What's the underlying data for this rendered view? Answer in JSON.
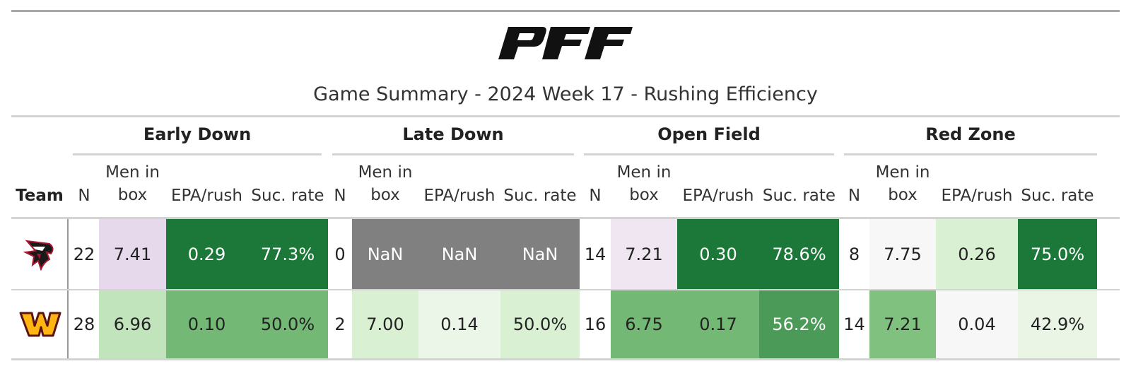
{
  "title": "Game Summary - 2024 Week 17 - Rushing Efficiency",
  "logo_text": "PFF",
  "chart_data": {
    "type": "table",
    "row_header": "Team",
    "groups": [
      "Early Down",
      "Late Down",
      "Open Field",
      "Red Zone"
    ],
    "columns": [
      "N",
      "Men in box",
      "EPA/rush",
      "Suc. rate"
    ],
    "rows": [
      {
        "team": "atlanta-falcons",
        "cells": [
          {
            "text": "22",
            "bg": "#ffffff",
            "color": "#222222"
          },
          {
            "text": "7.41",
            "bg": "#e7d9ec",
            "color": "#222222"
          },
          {
            "text": "0.29",
            "bg": "#1b7838",
            "color": "#ffffff"
          },
          {
            "text": "77.3%",
            "bg": "#1b7838",
            "color": "#ffffff"
          },
          {
            "text": "0",
            "bg": "#ffffff",
            "color": "#222222"
          },
          {
            "text": "NaN",
            "bg": "#808080",
            "color": "#ffffff"
          },
          {
            "text": "NaN",
            "bg": "#808080",
            "color": "#ffffff"
          },
          {
            "text": "NaN",
            "bg": "#808080",
            "color": "#ffffff"
          },
          {
            "text": "14",
            "bg": "#ffffff",
            "color": "#222222"
          },
          {
            "text": "7.21",
            "bg": "#efe6f2",
            "color": "#222222"
          },
          {
            "text": "0.30",
            "bg": "#1b7838",
            "color": "#ffffff"
          },
          {
            "text": "78.6%",
            "bg": "#1b7838",
            "color": "#ffffff"
          },
          {
            "text": "8",
            "bg": "#ffffff",
            "color": "#222222"
          },
          {
            "text": "7.75",
            "bg": "#f7f7f7",
            "color": "#222222"
          },
          {
            "text": "0.26",
            "bg": "#d9f0d3",
            "color": "#222222"
          },
          {
            "text": "75.0%",
            "bg": "#1b7838",
            "color": "#ffffff"
          }
        ]
      },
      {
        "team": "washington-commanders",
        "cells": [
          {
            "text": "28",
            "bg": "#ffffff",
            "color": "#222222"
          },
          {
            "text": "6.96",
            "bg": "#c1e4bc",
            "color": "#222222"
          },
          {
            "text": "0.10",
            "bg": "#73b874",
            "color": "#222222"
          },
          {
            "text": "50.0%",
            "bg": "#73b874",
            "color": "#222222"
          },
          {
            "text": "2",
            "bg": "#ffffff",
            "color": "#222222"
          },
          {
            "text": "7.00",
            "bg": "#d9f0d3",
            "color": "#222222"
          },
          {
            "text": "0.14",
            "bg": "#ebf6e8",
            "color": "#222222"
          },
          {
            "text": "50.0%",
            "bg": "#d9f0d3",
            "color": "#222222"
          },
          {
            "text": "16",
            "bg": "#ffffff",
            "color": "#222222"
          },
          {
            "text": "6.75",
            "bg": "#73b874",
            "color": "#222222"
          },
          {
            "text": "0.17",
            "bg": "#73b874",
            "color": "#222222"
          },
          {
            "text": "56.2%",
            "bg": "#4b9a57",
            "color": "#ffffff"
          },
          {
            "text": "14",
            "bg": "#ffffff",
            "color": "#222222"
          },
          {
            "text": "7.21",
            "bg": "#80c180",
            "color": "#222222"
          },
          {
            "text": "0.04",
            "bg": "#f7f7f7",
            "color": "#222222"
          },
          {
            "text": "42.9%",
            "bg": "#eaf5e6",
            "color": "#222222"
          }
        ]
      }
    ]
  }
}
